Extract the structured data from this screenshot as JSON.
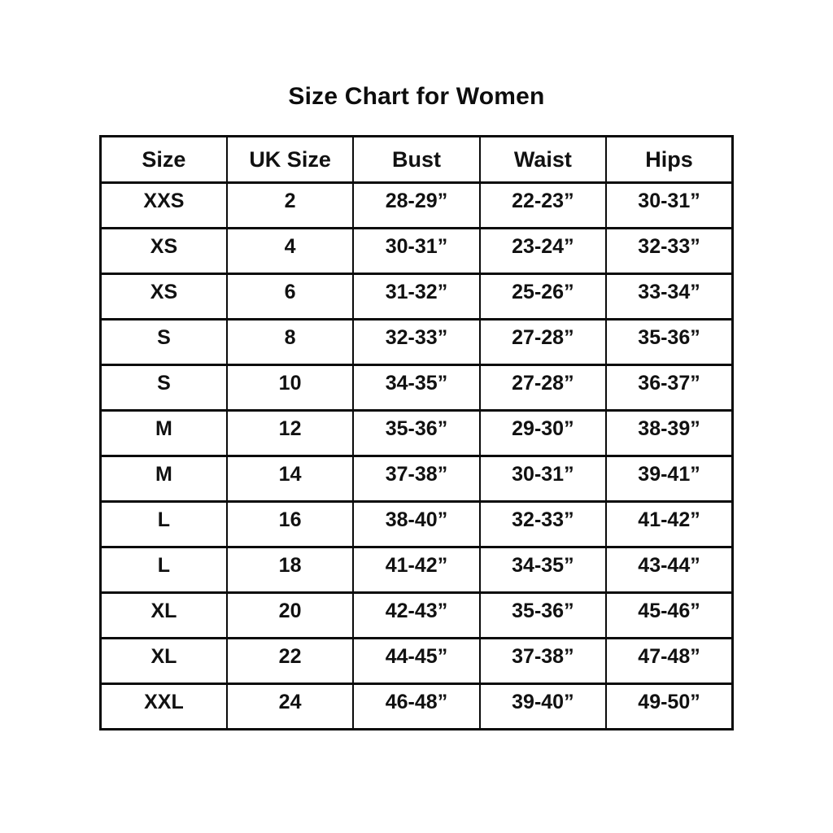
{
  "chart_data": {
    "type": "table",
    "title": "Size Chart for Women",
    "columns": [
      "Size",
      "UK Size",
      "Bust",
      "Waist",
      "Hips"
    ],
    "rows": [
      [
        "XXS",
        "2",
        "28-29”",
        "22-23”",
        "30-31”"
      ],
      [
        "XS",
        "4",
        "30-31”",
        "23-24”",
        "32-33”"
      ],
      [
        "XS",
        "6",
        "31-32”",
        "25-26”",
        "33-34”"
      ],
      [
        "S",
        "8",
        "32-33”",
        "27-28”",
        "35-36”"
      ],
      [
        "S",
        "10",
        "34-35”",
        "27-28”",
        "36-37”"
      ],
      [
        "M",
        "12",
        "35-36”",
        "29-30”",
        "38-39”"
      ],
      [
        "M",
        "14",
        "37-38”",
        "30-31”",
        "39-41”"
      ],
      [
        "L",
        "16",
        "38-40”",
        "32-33”",
        "41-42”"
      ],
      [
        "L",
        "18",
        "41-42”",
        "34-35”",
        "43-44”"
      ],
      [
        "XL",
        "20",
        "42-43”",
        "35-36”",
        "45-46”"
      ],
      [
        "XL",
        "22",
        "44-45”",
        "37-38”",
        "47-48”"
      ],
      [
        "XXL",
        "24",
        "46-48”",
        "39-40”",
        "49-50”"
      ]
    ],
    "layout": {
      "text_color": "#111111",
      "border_color": "#0a0a0a",
      "background": "#ffffff",
      "grid": "on"
    }
  }
}
